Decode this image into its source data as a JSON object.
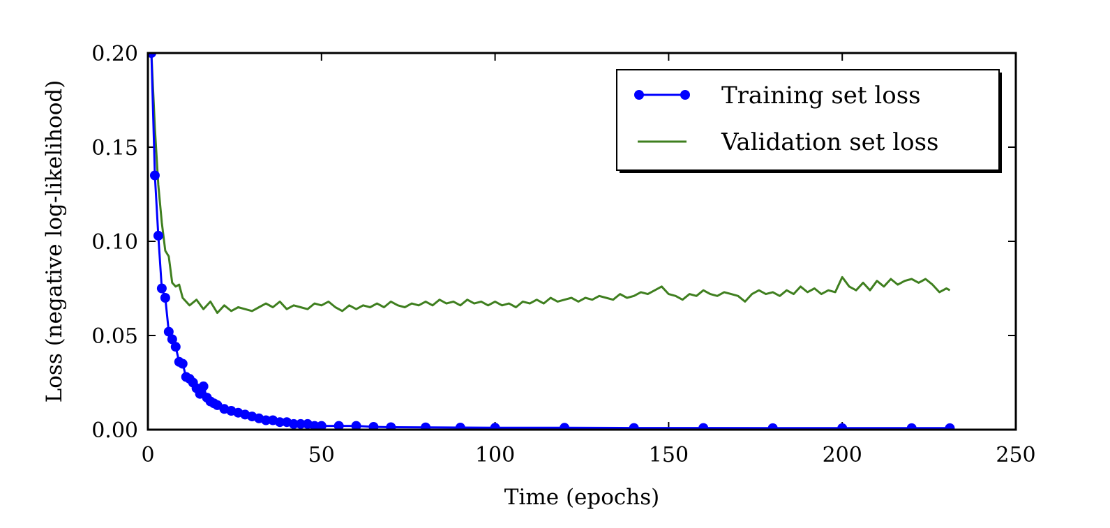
{
  "chart_data": {
    "type": "line",
    "title": "",
    "xlabel": "Time (epochs)",
    "ylabel": "Loss (negative log-likelihood)",
    "xlim": [
      0,
      250
    ],
    "ylim": [
      0,
      0.2
    ],
    "xticks": [
      0,
      50,
      100,
      150,
      200,
      250
    ],
    "xtick_labels": [
      "0",
      "50",
      "100",
      "150",
      "200",
      "250"
    ],
    "yticks": [
      0,
      0.05,
      0.1,
      0.15,
      0.2
    ],
    "ytick_labels": [
      "0.00",
      "0.05",
      "0.10",
      "0.15",
      "0.20"
    ],
    "grid": false,
    "legend_position": "top-right",
    "series": [
      {
        "name": "Training set loss",
        "color": "#0000ff",
        "marker": "circle",
        "x": [
          1,
          2,
          3,
          4,
          5,
          6,
          7,
          8,
          9,
          10,
          11,
          12,
          13,
          14,
          15,
          16,
          17,
          18,
          19,
          20,
          22,
          24,
          26,
          28,
          30,
          32,
          34,
          36,
          38,
          40,
          42,
          44,
          46,
          48,
          50,
          55,
          60,
          65,
          70,
          80,
          90,
          100,
          120,
          140,
          160,
          180,
          200,
          220,
          231
        ],
        "y": [
          0.2,
          0.135,
          0.103,
          0.075,
          0.07,
          0.052,
          0.048,
          0.044,
          0.036,
          0.035,
          0.028,
          0.027,
          0.025,
          0.022,
          0.019,
          0.023,
          0.017,
          0.015,
          0.014,
          0.013,
          0.011,
          0.01,
          0.009,
          0.008,
          0.007,
          0.006,
          0.005,
          0.005,
          0.004,
          0.004,
          0.003,
          0.003,
          0.003,
          0.002,
          0.002,
          0.002,
          0.002,
          0.0015,
          0.0013,
          0.0012,
          0.0011,
          0.001,
          0.001,
          0.0009,
          0.0009,
          0.0008,
          0.0008,
          0.0008,
          0.0008
        ]
      },
      {
        "name": "Validation set loss",
        "color": "#3f7f1f",
        "marker": "none",
        "x": [
          1,
          2,
          3,
          4,
          5,
          6,
          7,
          8,
          9,
          10,
          12,
          14,
          16,
          18,
          20,
          22,
          24,
          26,
          28,
          30,
          32,
          34,
          36,
          38,
          40,
          42,
          44,
          46,
          48,
          50,
          52,
          54,
          56,
          58,
          60,
          62,
          64,
          66,
          68,
          70,
          72,
          74,
          76,
          78,
          80,
          82,
          84,
          86,
          88,
          90,
          92,
          94,
          96,
          98,
          100,
          102,
          104,
          106,
          108,
          110,
          112,
          114,
          116,
          118,
          120,
          122,
          124,
          126,
          128,
          130,
          132,
          134,
          136,
          138,
          140,
          142,
          144,
          146,
          148,
          150,
          152,
          154,
          156,
          158,
          160,
          162,
          164,
          166,
          168,
          170,
          172,
          174,
          176,
          178,
          180,
          182,
          184,
          186,
          188,
          190,
          192,
          194,
          196,
          198,
          200,
          202,
          204,
          206,
          208,
          210,
          212,
          214,
          216,
          218,
          220,
          222,
          224,
          226,
          228,
          230,
          231
        ],
        "y": [
          0.2,
          0.16,
          0.13,
          0.11,
          0.095,
          0.092,
          0.078,
          0.076,
          0.077,
          0.07,
          0.066,
          0.069,
          0.064,
          0.068,
          0.062,
          0.066,
          0.063,
          0.065,
          0.064,
          0.063,
          0.065,
          0.067,
          0.065,
          0.068,
          0.064,
          0.066,
          0.065,
          0.064,
          0.067,
          0.066,
          0.068,
          0.065,
          0.063,
          0.066,
          0.064,
          0.066,
          0.065,
          0.067,
          0.065,
          0.068,
          0.066,
          0.065,
          0.067,
          0.066,
          0.068,
          0.066,
          0.069,
          0.067,
          0.068,
          0.066,
          0.069,
          0.067,
          0.068,
          0.066,
          0.068,
          0.066,
          0.067,
          0.065,
          0.068,
          0.067,
          0.069,
          0.067,
          0.07,
          0.068,
          0.069,
          0.07,
          0.068,
          0.07,
          0.069,
          0.071,
          0.07,
          0.069,
          0.072,
          0.07,
          0.071,
          0.073,
          0.072,
          0.074,
          0.076,
          0.072,
          0.071,
          0.069,
          0.072,
          0.071,
          0.074,
          0.072,
          0.071,
          0.073,
          0.072,
          0.071,
          0.068,
          0.072,
          0.074,
          0.072,
          0.073,
          0.071,
          0.074,
          0.072,
          0.076,
          0.073,
          0.075,
          0.072,
          0.074,
          0.073,
          0.081,
          0.076,
          0.074,
          0.078,
          0.074,
          0.079,
          0.076,
          0.08,
          0.077,
          0.079,
          0.08,
          0.078,
          0.08,
          0.077,
          0.073,
          0.075,
          0.074
        ]
      }
    ]
  }
}
